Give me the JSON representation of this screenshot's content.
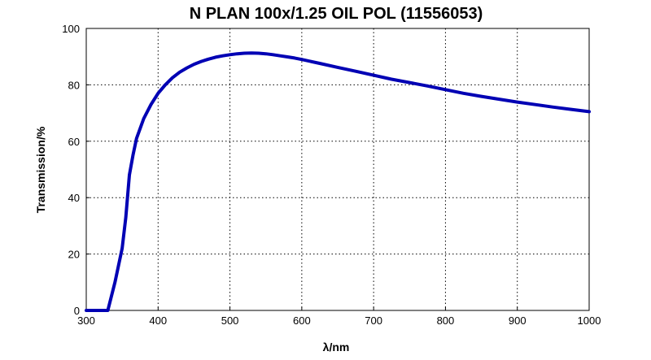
{
  "chart_data": {
    "type": "line",
    "title": "N PLAN 100x/1.25 OIL POL (11556053)",
    "xlabel": "λ/nm",
    "ylabel": "Transmission/%",
    "xlim": [
      300,
      1000
    ],
    "ylim": [
      0,
      100
    ],
    "xticks": [
      300,
      400,
      500,
      600,
      700,
      800,
      900,
      1000
    ],
    "yticks": [
      0,
      20,
      40,
      60,
      80,
      100
    ],
    "grid": true,
    "legend": "none",
    "series": [
      {
        "color": "#0000b4",
        "x": [
          300,
          330,
          340,
          350,
          355,
          360,
          365,
          370,
          380,
          390,
          400,
          410,
          420,
          430,
          440,
          450,
          460,
          470,
          480,
          490,
          500,
          510,
          520,
          530,
          540,
          550,
          560,
          570,
          580,
          590,
          600,
          625,
          650,
          675,
          700,
          725,
          750,
          775,
          800,
          825,
          850,
          875,
          900,
          925,
          950,
          975,
          1000
        ],
        "y": [
          0,
          0,
          10,
          22,
          33,
          48,
          55,
          61,
          68,
          73,
          77,
          80,
          82.5,
          84.5,
          86,
          87.3,
          88.3,
          89.1,
          89.8,
          90.3,
          90.7,
          91,
          91.2,
          91.3,
          91.2,
          91,
          90.7,
          90.3,
          89.9,
          89.5,
          89,
          87.6,
          86.2,
          84.8,
          83.4,
          82,
          80.8,
          79.6,
          78.3,
          77,
          75.9,
          74.9,
          73.9,
          73,
          72.1,
          71.3,
          70.5
        ]
      }
    ]
  }
}
